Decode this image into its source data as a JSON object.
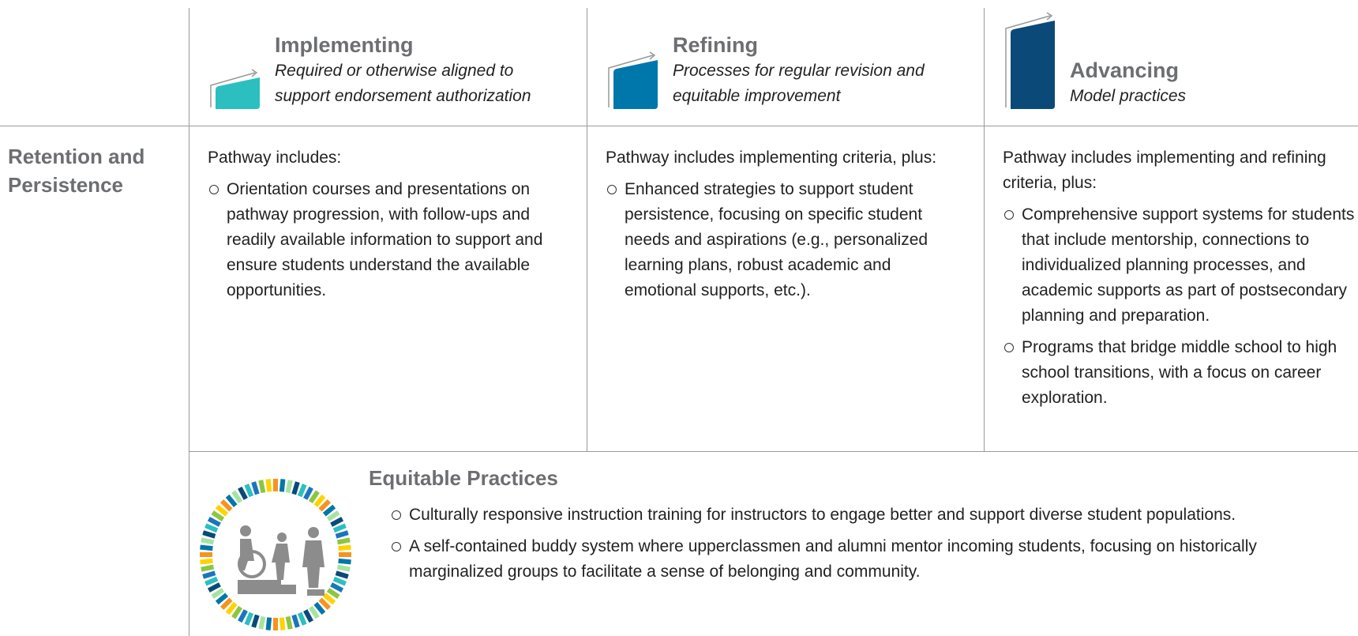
{
  "columns": [
    {
      "title": "Implementing",
      "subtitle": "Required or otherwise aligned to support endorsement authorization"
    },
    {
      "title": "Refining",
      "subtitle": "Processes for regular revision and equitable improvement"
    },
    {
      "title": "Advancing",
      "subtitle": "Model practices"
    }
  ],
  "row": {
    "label": "Retention and Persistence",
    "cells": [
      {
        "intro": "Pathway includes:",
        "items": [
          "Orientation courses and presentations on pathway progression, with follow-ups and readily available information to support and ensure students understand the available opportunities."
        ]
      },
      {
        "intro": "Pathway includes implementing criteria, plus:",
        "items": [
          "Enhanced strategies to support student persistence, focusing on specific student needs and aspirations (e.g., personalized learning plans, robust academic and emotional supports, etc.)."
        ]
      },
      {
        "intro": "Pathway includes implementing and refining criteria, plus:",
        "items": [
          "Comprehensive support systems for students that include mentorship, connections to individualized planning processes, and academic supports as part of postsecondary planning and preparation.",
          "Programs that bridge middle school to high school transitions, with a focus on career exploration."
        ]
      }
    ]
  },
  "equitable_practices": {
    "title": "Equitable Practices",
    "items": [
      "Culturally responsive instruction training for instructors to engage better and support diverse student populations.",
      "A self-contained buddy system where upperclassmen and alumni mentor incoming students, focusing on historically marginalized groups to facilitate a sense of belonging and community."
    ]
  }
}
